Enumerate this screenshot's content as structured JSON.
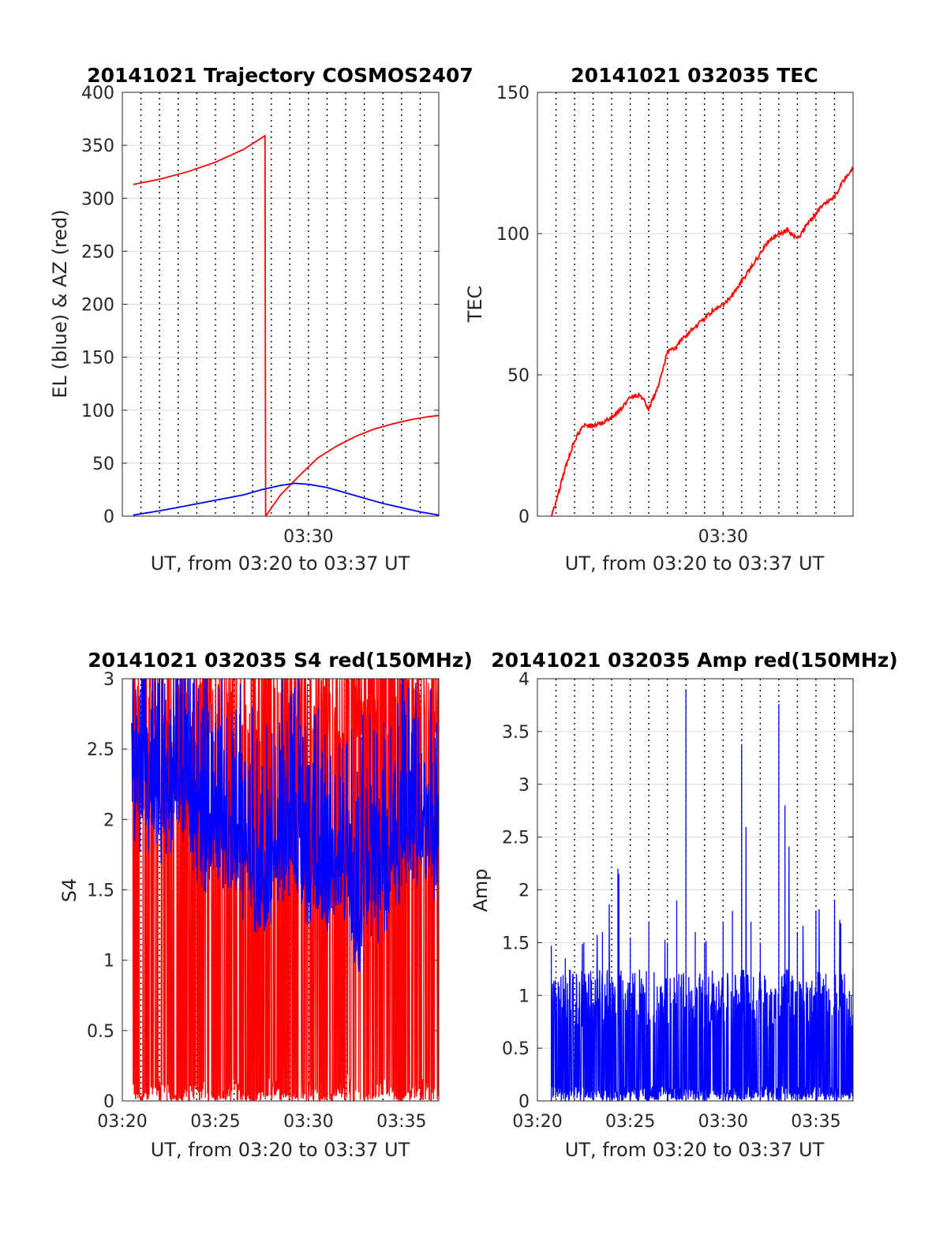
{
  "chart_data": [
    {
      "type": "line",
      "title": "20141021 Trajectory COSMOS2407",
      "xlabel": "UT, from 03:20 to 03:37 UT",
      "ylabel": "EL (blue) & AZ (red)",
      "xlim": [
        "03:20",
        "03:37"
      ],
      "ylim": [
        0,
        400
      ],
      "x_ticks": [
        "03:30"
      ],
      "y_ticks": [
        "0",
        "50",
        "100",
        "150",
        "200",
        "250",
        "300",
        "350",
        "400"
      ],
      "grid": true,
      "series": [
        {
          "color": "#ff0000",
          "x": [
            "03:20:35",
            "03:22:00",
            "03:23:30",
            "03:25:00",
            "03:26:30",
            "03:27:40",
            "03:27:42",
            "03:28:30",
            "03:29:30",
            "03:30:30",
            "03:31:30",
            "03:32:30",
            "03:33:30",
            "03:34:30",
            "03:35:30",
            "03:36:30",
            "03:37:00"
          ],
          "values": [
            313,
            318,
            325,
            334,
            346,
            359,
            0,
            20,
            38,
            55,
            66,
            75,
            82,
            87,
            91,
            94,
            95
          ]
        },
        {
          "color": "#0000ff",
          "x": [
            "03:20:35",
            "03:22:00",
            "03:23:30",
            "03:25:00",
            "03:26:30",
            "03:27:30",
            "03:28:30",
            "03:29:15",
            "03:30:00",
            "03:31:00",
            "03:32:00",
            "03:33:00",
            "03:34:00",
            "03:35:00",
            "03:36:00",
            "03:37:00"
          ],
          "values": [
            1,
            5,
            10,
            15,
            20,
            25,
            29,
            31,
            30,
            27,
            22,
            17,
            12,
            8,
            4,
            1
          ]
        }
      ]
    },
    {
      "type": "line",
      "title": "20141021 032035 TEC",
      "xlabel": "UT, from 03:20 to 03:37 UT",
      "ylabel": "TEC",
      "xlim": [
        "03:20",
        "03:37"
      ],
      "ylim": [
        0,
        150
      ],
      "x_ticks": [
        "03:30"
      ],
      "y_ticks": [
        "0",
        "50",
        "100",
        "150"
      ],
      "grid": true,
      "series": [
        {
          "color": "#ff0000",
          "x": [
            "03:20:45",
            "03:21:00",
            "03:21:30",
            "03:22:00",
            "03:22:30",
            "03:23:00",
            "03:23:30",
            "03:24:00",
            "03:24:30",
            "03:25:00",
            "03:25:30",
            "03:25:50",
            "03:26:00",
            "03:26:30",
            "03:27:00",
            "03:27:30",
            "03:28:00",
            "03:28:30",
            "03:29:00",
            "03:29:30",
            "03:30:00",
            "03:30:30",
            "03:31:00",
            "03:31:30",
            "03:32:00",
            "03:32:30",
            "03:33:00",
            "03:33:30",
            "03:34:00",
            "03:34:30",
            "03:35:00",
            "03:35:30",
            "03:36:00",
            "03:36:30",
            "03:37:00"
          ],
          "values": [
            0,
            5,
            17,
            27,
            32,
            32,
            33,
            35,
            38,
            42,
            43,
            40,
            38,
            46,
            58,
            60,
            64,
            67,
            70,
            73,
            75,
            78,
            83,
            88,
            93,
            98,
            100,
            101,
            98,
            103,
            107,
            111,
            113,
            119,
            123
          ]
        }
      ]
    },
    {
      "type": "line",
      "title": "20141021 032035 S4 red(150MHz)",
      "xlabel": "UT, from 03:20 to 03:37 UT",
      "ylabel": "S4",
      "xlim": [
        "03:20",
        "03:37"
      ],
      "ylim": [
        0,
        3
      ],
      "x_ticks": [
        "03:20",
        "03:25",
        "03:30",
        "03:35"
      ],
      "y_ticks": [
        "0",
        "0.5",
        "1",
        "1.5",
        "2",
        "2.5",
        "3"
      ],
      "grid": true,
      "series": [
        {
          "color": "#ff0000",
          "x": [
            "03:20:30",
            "03:21:00",
            "03:22:00",
            "03:23:00",
            "03:24:00",
            "03:25:00",
            "03:26:00",
            "03:27:00",
            "03:28:00",
            "03:29:00",
            "03:30:00",
            "03:31:00",
            "03:32:00",
            "03:33:00",
            "03:34:00",
            "03:35:00",
            "03:36:00",
            "03:37:00"
          ],
          "values": [
            2.0,
            0.4,
            2.5,
            0.3,
            2.6,
            0.5,
            2.2,
            0.2,
            2.4,
            0.6,
            2.0,
            0.3,
            2.8,
            0.4,
            2.2,
            0.1,
            2.5,
            0.8
          ]
        },
        {
          "color": "#0000ff",
          "x": [
            "03:20:30",
            "03:21:00",
            "03:22:00",
            "03:23:00",
            "03:24:00",
            "03:25:00",
            "03:26:00",
            "03:26:50",
            "03:27:30",
            "03:28:00",
            "03:29:00",
            "03:30:00",
            "03:31:00",
            "03:32:00",
            "03:32:30",
            "03:33:00",
            "03:34:00",
            "03:35:00",
            "03:36:00",
            "03:37:00"
          ],
          "values": [
            2.1,
            2.0,
            1.9,
            2.1,
            1.6,
            1.7,
            1.6,
            1.5,
            1.2,
            1.4,
            1.7,
            1.4,
            1.3,
            1.5,
            1.0,
            1.3,
            1.4,
            1.6,
            1.7,
            1.5
          ]
        }
      ]
    },
    {
      "type": "line",
      "title": "20141021 032035 Amp red(150MHz)",
      "xlabel": "UT, from 03:20 to 03:37 UT",
      "ylabel": "Amp",
      "xlim": [
        "03:20",
        "03:37"
      ],
      "ylim": [
        0,
        4
      ],
      "x_ticks": [
        "03:20",
        "03:25",
        "03:30",
        "03:35"
      ],
      "y_ticks": [
        "0",
        "0.5",
        "1",
        "1.5",
        "2",
        "2.5",
        "3",
        "3.5",
        "4"
      ],
      "grid": true,
      "series": [
        {
          "color": "#0000ff",
          "x": [
            "03:20:45",
            "03:21:30",
            "03:22:30",
            "03:23:30",
            "03:24:20",
            "03:25:00",
            "03:26:00",
            "03:27:00",
            "03:27:30",
            "03:28:00",
            "03:28:30",
            "03:29:00",
            "03:30:00",
            "03:30:30",
            "03:31:00",
            "03:31:30",
            "03:32:00",
            "03:33:00",
            "03:33:20",
            "03:34:00",
            "03:35:00",
            "03:36:00",
            "03:37:00"
          ],
          "values": [
            1.47,
            1.35,
            1.5,
            1.6,
            2.2,
            1.55,
            1.7,
            1.5,
            1.9,
            3.9,
            1.6,
            1.5,
            1.7,
            1.8,
            3.38,
            1.7,
            1.5,
            3.76,
            2.8,
            1.6,
            1.8,
            1.9,
            1.25
          ]
        }
      ]
    }
  ]
}
